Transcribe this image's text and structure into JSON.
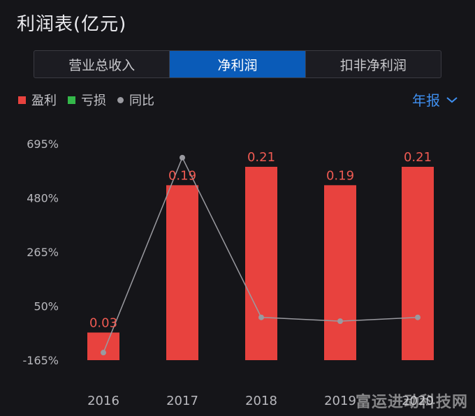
{
  "header": {
    "title": "利润表(亿元)"
  },
  "tabs": [
    {
      "label": "营业总收入",
      "active": false
    },
    {
      "label": "净利润",
      "active": true
    },
    {
      "label": "扣非净利润",
      "active": false
    }
  ],
  "legend": [
    {
      "label": "盈利",
      "color": "#e8423e",
      "shape": "square"
    },
    {
      "label": "亏损",
      "color": "#34b84a",
      "shape": "square"
    },
    {
      "label": "同比",
      "color": "#9a9aa0",
      "shape": "circle"
    }
  ],
  "period_selector": {
    "label": "年报",
    "icon": "chevron-down-icon"
  },
  "watermark": "富运进动科技网",
  "chart_data": {
    "type": "bar",
    "categories": [
      "2016",
      "2017",
      "2018",
      "2019",
      "2020"
    ],
    "series": [
      {
        "name": "盈利",
        "type": "bar",
        "color": "#e8423e",
        "values": [
          0.03,
          0.19,
          0.21,
          0.19,
          0.21
        ],
        "data_labels": [
          "0.03",
          "0.19",
          "0.21",
          "0.19",
          "0.21"
        ]
      },
      {
        "name": "同比",
        "type": "line",
        "color": "#9a9aa0",
        "values": [
          -135,
          640,
          5,
          -10,
          5
        ]
      }
    ],
    "y_axis": {
      "ticks": [
        695,
        480,
        265,
        50,
        -165
      ],
      "tick_labels": [
        "695%",
        "480%",
        "265%",
        "50%",
        "-165%"
      ],
      "range": [
        -165,
        695
      ]
    },
    "bar_axis_range": [
      0,
      0.235
    ],
    "grid": false,
    "legend_position": "top-left"
  }
}
